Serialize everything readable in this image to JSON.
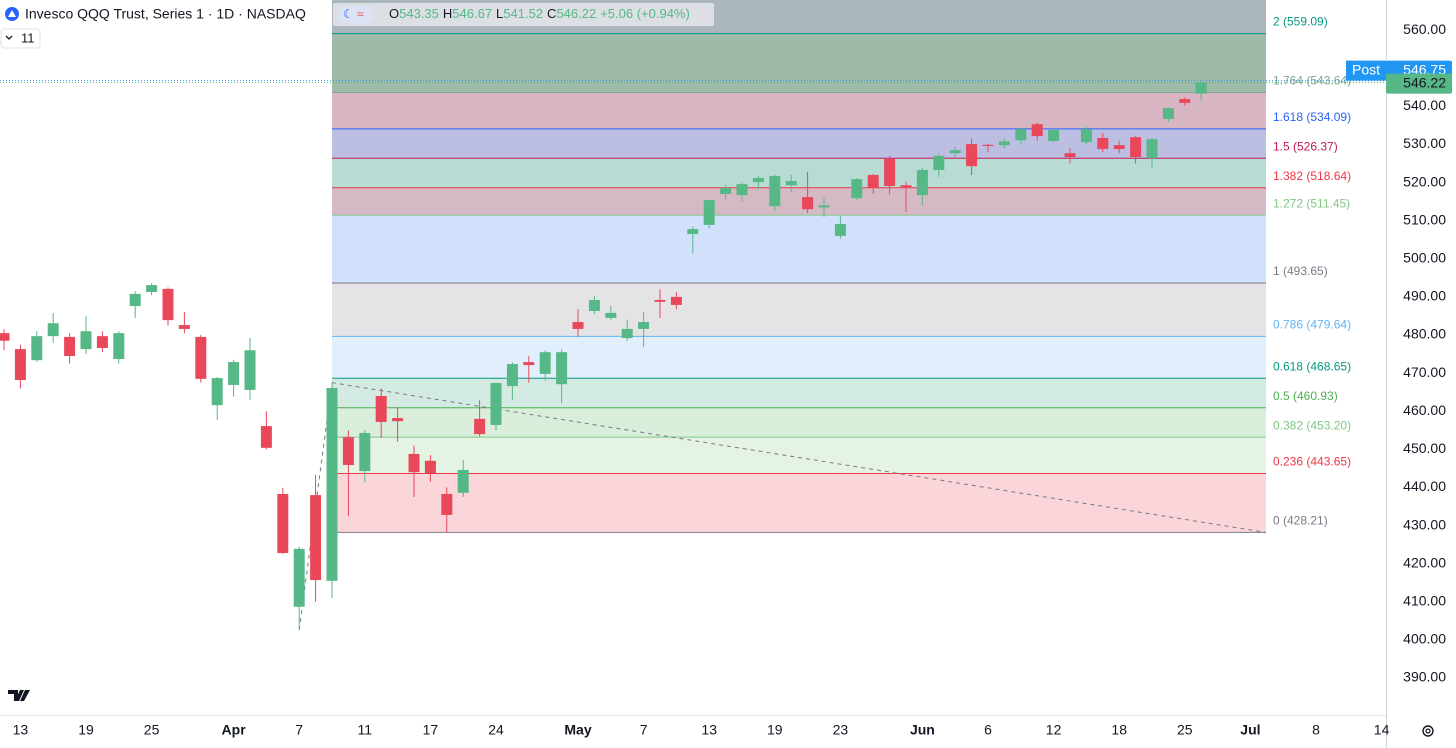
{
  "chart_data": {
    "type": "candlestick",
    "title": "Invesco QQQ Trust, Series 1 · 1D · NASDAQ",
    "indicator": "11",
    "ohlc_labels": [
      "O",
      "H",
      "L",
      "C"
    ],
    "change": "+5.06 (+0.94%)",
    "post_label": "Post",
    "post_price": 546.75,
    "up_color": "#56b886",
    "down_color": "#e8485a",
    "categories": [
      null,
      "13",
      null,
      null,
      null,
      "19",
      null,
      null,
      null,
      "25",
      null,
      null,
      null,
      null,
      "Apr",
      null,
      null,
      null,
      "7",
      null,
      null,
      null,
      "11",
      null,
      null,
      null,
      "17",
      null,
      null,
      null,
      "24",
      null,
      null,
      null,
      null,
      "May",
      null,
      null,
      null,
      "7",
      null,
      null,
      null,
      "13",
      null,
      null,
      null,
      "19",
      null,
      null,
      null,
      "23",
      null,
      null,
      null,
      null,
      "Jun",
      null,
      null,
      null,
      "6",
      null,
      null,
      null,
      "12",
      null,
      null,
      null,
      "18",
      null,
      null,
      null,
      "25",
      null,
      null,
      null,
      "Jul",
      null,
      null,
      null,
      "8",
      null,
      null,
      null,
      "14"
    ],
    "open": [
      480.5,
      476.3,
      473.4,
      479.7,
      479.5,
      476.3,
      479.7,
      473.7,
      487.6,
      491.3,
      492.1,
      482.6,
      479.5,
      461.6,
      466.9,
      465.6,
      456.1,
      438.3,
      408.7,
      438,
      415.5,
      453.2,
      444.3,
      464,
      458.2,
      448.8,
      447,
      438.3,
      438.6,
      458,
      456.4,
      466.6,
      472.9,
      469.8,
      467.1,
      483.4,
      486.3,
      484.5,
      479.2,
      481.6,
      489.2,
      490,
      506.5,
      508.9,
      517,
      516.7,
      520.1,
      513.8,
      519.3,
      516.2,
      513.5,
      506,
      515.9,
      522,
      526.2,
      519.3,
      516.7,
      523.3,
      527.7,
      530.1,
      529.9,
      529.8,
      531.1,
      535.3,
      530.9,
      527.7,
      530.6,
      531.7,
      529.8,
      531.9,
      526.4,
      536.7,
      541.9,
      543.35,
      null,
      null,
      null,
      null,
      null,
      null,
      null,
      null,
      null,
      null,
      null
    ],
    "high": [
      481.5,
      477.5,
      481,
      485.8,
      480.5,
      485,
      481,
      481,
      491.5,
      493.6,
      492.5,
      486,
      480,
      469,
      473.5,
      479.2,
      460,
      439.9,
      424.5,
      443.3,
      467.5,
      455,
      455,
      466,
      461,
      451,
      448.5,
      440,
      447.2,
      462.9,
      467.6,
      472.8,
      474.5,
      476,
      476.2,
      486.8,
      490.2,
      487.6,
      484,
      486,
      492,
      491.3,
      508.5,
      515.6,
      519.4,
      520,
      521.7,
      522,
      522,
      522.8,
      516,
      511.2,
      521.2,
      522.3,
      527,
      520.2,
      523.8,
      527.6,
      529.3,
      531.5,
      530.2,
      531.6,
      534.4,
      535.7,
      534.1,
      529,
      534.6,
      533,
      531,
      532.3,
      531.7,
      539.8,
      542.4,
      546.67,
      null,
      null,
      null,
      null,
      null,
      null,
      null,
      null,
      null,
      null,
      null
    ],
    "low": [
      476,
      466,
      473,
      478,
      472.5,
      475,
      475.5,
      472.5,
      484.5,
      490.5,
      482.5,
      480.5,
      467.5,
      457.7,
      463.8,
      463,
      450,
      422.5,
      402.6,
      410,
      411,
      432.5,
      441.4,
      453,
      452,
      437.5,
      441.5,
      428.3,
      437.5,
      453.4,
      455,
      463,
      467.5,
      468,
      462.2,
      479.5,
      485.5,
      484,
      478.5,
      476.9,
      484.5,
      486.8,
      501.5,
      508,
      515.5,
      515,
      518.2,
      512.6,
      517.5,
      512,
      511,
      505.3,
      515.5,
      517,
      516.9,
      512.3,
      514,
      521.5,
      526.5,
      522,
      528,
      529,
      530,
      531,
      530.5,
      525,
      530,
      528,
      527.7,
      525,
      523.8,
      536,
      540.2,
      541.52,
      null,
      null,
      null,
      null,
      null,
      null,
      null,
      null,
      null,
      null,
      null
    ],
    "close": [
      478.5,
      468.2,
      479.7,
      483.1,
      474.5,
      481,
      476.6,
      480.5,
      490.8,
      493.1,
      483.9,
      481.6,
      468.5,
      468.7,
      472.9,
      476,
      450.4,
      422.8,
      423.9,
      415.7,
      466.1,
      445.9,
      454.3,
      457.2,
      457.4,
      444,
      443.8,
      432.8,
      444.6,
      454,
      467.4,
      472.4,
      472.1,
      475.5,
      475.5,
      481.6,
      489.2,
      485.8,
      481.6,
      483.4,
      488.7,
      487.9,
      507.8,
      515.4,
      518.6,
      519.6,
      521.2,
      521.7,
      520.4,
      513,
      514,
      509.1,
      520.9,
      518.6,
      519.1,
      518.8,
      523.3,
      527,
      528.5,
      524.3,
      529.6,
      530.8,
      534,
      532.2,
      533.8,
      526.7,
      534,
      528.8,
      528.8,
      526.7,
      531.4,
      539.5,
      540.9,
      546.22,
      null,
      null,
      null,
      null,
      null,
      null,
      null,
      null,
      null,
      null,
      null
    ],
    "ylim": [
      380.3,
      567.9
    ],
    "yticks": [
      {
        "value": 390,
        "label": "390.00"
      },
      {
        "value": 400,
        "label": "400.00"
      },
      {
        "value": 410,
        "label": "410.00"
      },
      {
        "value": 420,
        "label": "420.00"
      },
      {
        "value": 430,
        "label": "430.00"
      },
      {
        "value": 440,
        "label": "440.00"
      },
      {
        "value": 450,
        "label": "450.00"
      },
      {
        "value": 460,
        "label": "460.00"
      },
      {
        "value": 470,
        "label": "470.00"
      },
      {
        "value": 480,
        "label": "480.00"
      },
      {
        "value": 490,
        "label": "490.00"
      },
      {
        "value": 500,
        "label": "500.00"
      },
      {
        "value": 510,
        "label": "510.00"
      },
      {
        "value": 520,
        "label": "520.00"
      },
      {
        "value": 530,
        "label": "530.00"
      },
      {
        "value": 540,
        "label": "540.00"
      },
      {
        "value": 550,
        "label": "550.00"
      },
      {
        "value": 560,
        "label": "560.00"
      }
    ],
    "fib": {
      "start": 20,
      "top_fill": "#aab5bc",
      "levels": [
        {
          "label": "0 (428.21)",
          "value": 428.21,
          "color": "#787b86",
          "fill": "#fad5da"
        },
        {
          "label": "0.236 (443.65)",
          "value": 443.65,
          "color": "#f23645",
          "fill": "#e5f3e4"
        },
        {
          "label": "0.382 (453.20)",
          "value": 453.2,
          "color": "#81c784",
          "fill": "#d9eedb"
        },
        {
          "label": "0.5 (460.93)",
          "value": 460.93,
          "color": "#4caf50",
          "fill": "#d3ebe2"
        },
        {
          "label": "0.618 (468.65)",
          "value": 468.65,
          "color": "#089981",
          "fill": "#e1eefb"
        },
        {
          "label": "0.786 (479.64)",
          "value": 479.64,
          "color": "#64b5f6",
          "fill": "#e4e4e6"
        },
        {
          "label": "1 (493.65)",
          "value": 493.65,
          "color": "#787b86",
          "fill": "#d2e1fb"
        },
        {
          "label": "1.272 (511.45)",
          "value": 511.45,
          "color": "#81c784",
          "fill": "#d5bac6"
        },
        {
          "label": "1.382 (518.64)",
          "value": 518.64,
          "color": "#f23645",
          "fill": "#b8dcd3"
        },
        {
          "label": "1.5 (526.37)",
          "value": 526.37,
          "color": "#c2185b",
          "fill": "#bcbee2"
        },
        {
          "label": "1.618 (534.09)",
          "value": 534.09,
          "color": "#2962ff",
          "fill": "#d8b5c2"
        },
        {
          "label": "1.764 (543.64)",
          "value": 543.64,
          "color": "#7fa78e",
          "fill": "#9dbba8"
        },
        {
          "label": "2 (559.09)",
          "value": 559.09,
          "color": "#089981",
          "fill": null
        }
      ]
    }
  }
}
